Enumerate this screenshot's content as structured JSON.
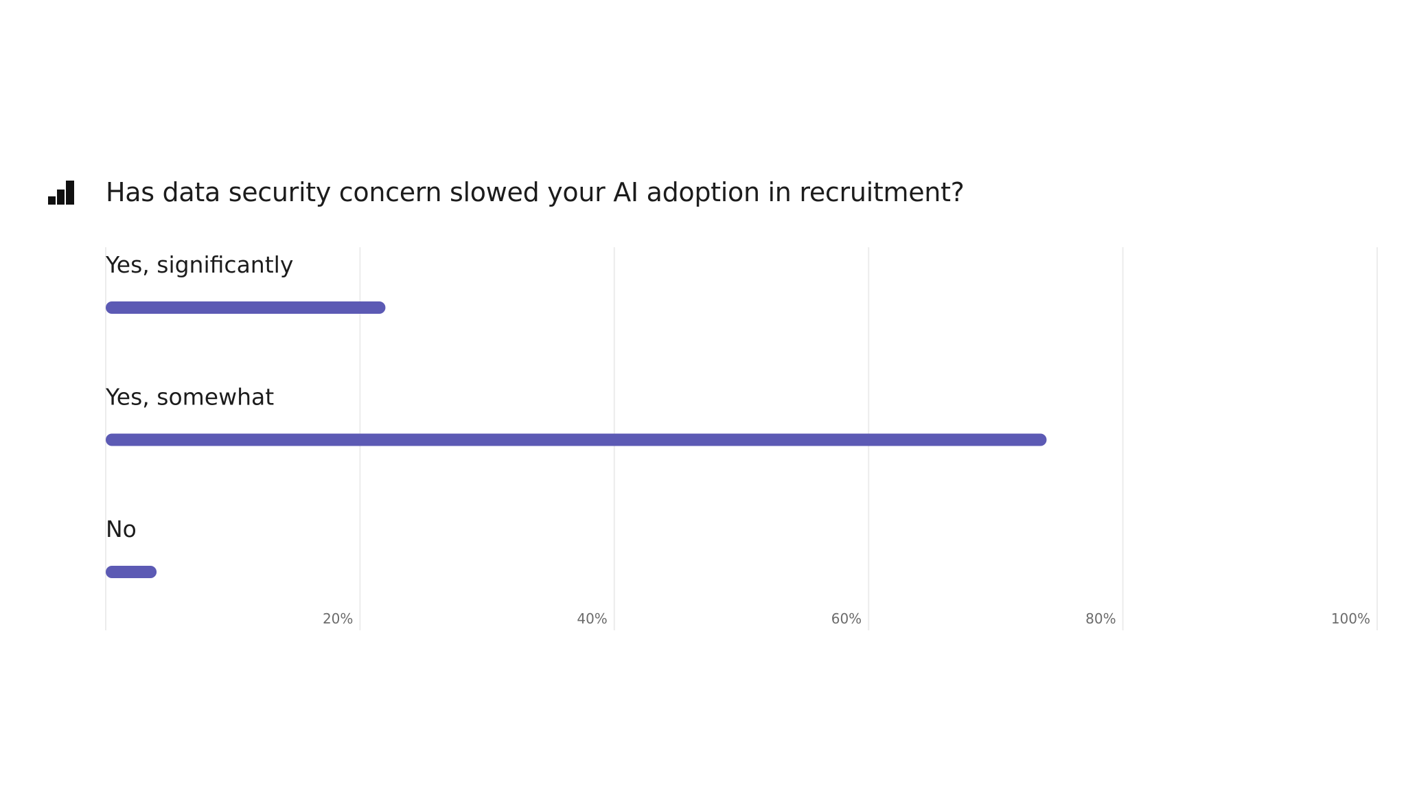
{
  "chart_data": {
    "type": "bar",
    "orientation": "horizontal",
    "title": "Has data security concern slowed your  AI adoption in recruitment?",
    "categories": [
      "Yes, significantly",
      "Yes, somewhat",
      "No"
    ],
    "values": [
      22,
      74,
      4
    ],
    "xlim": [
      0,
      100
    ],
    "xticks": [
      20,
      40,
      60,
      80,
      100
    ],
    "tick_labels": [
      "20%",
      "40%",
      "60%",
      "80%",
      "100%"
    ],
    "grid": true,
    "bar_color": "#5c5ab4",
    "grid_color": "#ececec"
  },
  "icon": "bar-chart-icon"
}
